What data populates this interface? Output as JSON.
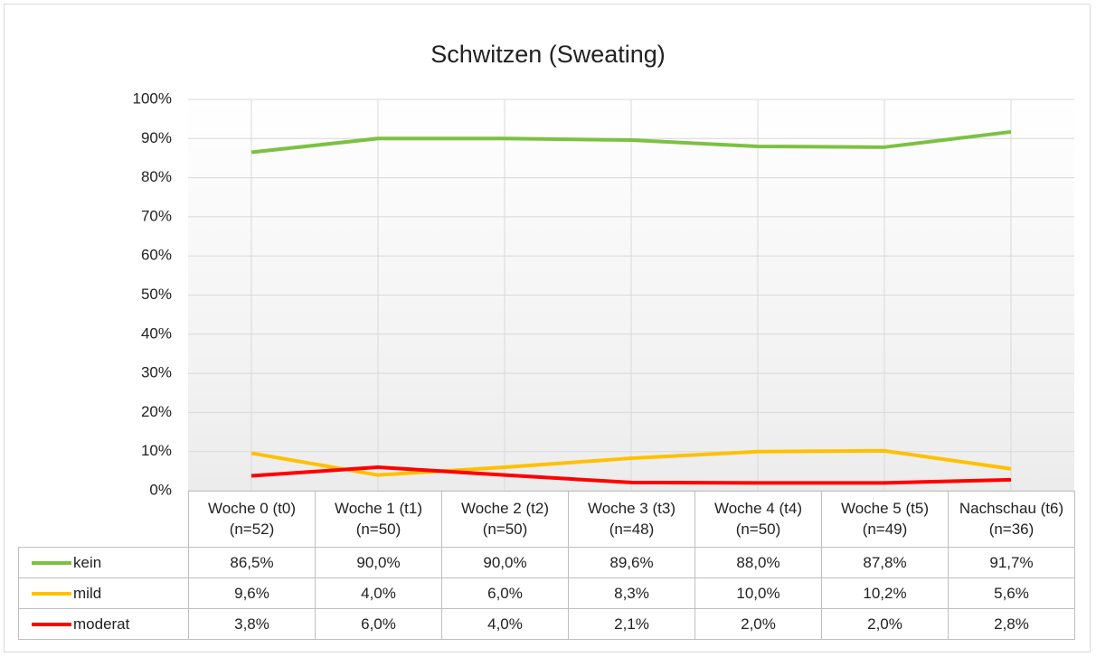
{
  "chart_data": {
    "type": "line",
    "title": "Schwitzen (Sweating)",
    "categories": [
      "Woche 0 (t0) (n=52)",
      "Woche 1 (t1) (n=50)",
      "Woche 2 (t2) (n=50)",
      "Woche 3 (t3) (n=48)",
      "Woche 4 (t4) (n=50)",
      "Woche 5 (t5) (n=49)",
      "Nachschau (t6) (n=36)"
    ],
    "series": [
      {
        "name": "kein",
        "color": "#7cc142",
        "values": [
          86.5,
          90.0,
          90.0,
          89.6,
          88.0,
          87.8,
          91.7
        ],
        "value_labels": [
          "86,5%",
          "90,0%",
          "90,0%",
          "89,6%",
          "88,0%",
          "87,8%",
          "91,7%"
        ]
      },
      {
        "name": "mild",
        "color": "#ffc000",
        "values": [
          9.6,
          4.0,
          6.0,
          8.3,
          10.0,
          10.2,
          5.6
        ],
        "value_labels": [
          "9,6%",
          "4,0%",
          "6,0%",
          "8,3%",
          "10,0%",
          "10,2%",
          "5,6%"
        ]
      },
      {
        "name": "moderat",
        "color": "#ff0000",
        "values": [
          3.8,
          6.0,
          4.0,
          2.1,
          2.0,
          2.0,
          2.8
        ],
        "value_labels": [
          "3,8%",
          "6,0%",
          "4,0%",
          "2,1%",
          "2,0%",
          "2,0%",
          "2,8%"
        ]
      }
    ],
    "ylim": [
      0,
      100
    ],
    "yticks": [
      {
        "value": 0,
        "label": "0%"
      },
      {
        "value": 10,
        "label": "10%"
      },
      {
        "value": 20,
        "label": "20%"
      },
      {
        "value": 30,
        "label": "30%"
      },
      {
        "value": 40,
        "label": "40%"
      },
      {
        "value": 50,
        "label": "50%"
      },
      {
        "value": 60,
        "label": "60%"
      },
      {
        "value": 70,
        "label": "70%"
      },
      {
        "value": 80,
        "label": "80%"
      },
      {
        "value": 90,
        "label": "90%"
      },
      {
        "value": 100,
        "label": "100%"
      }
    ],
    "grid": true
  }
}
